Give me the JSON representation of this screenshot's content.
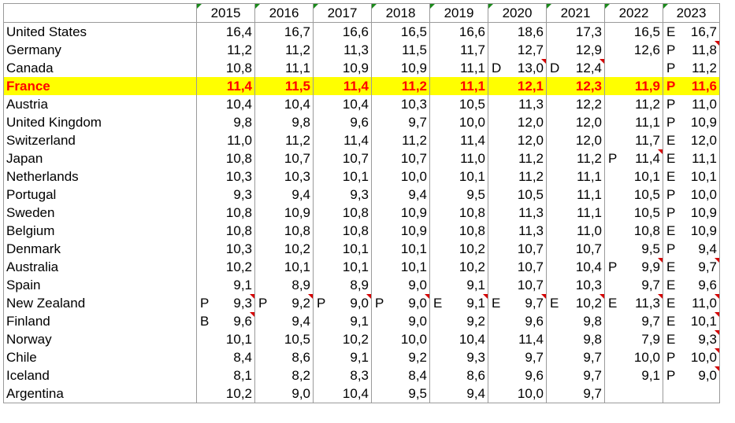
{
  "years": [
    "2015",
    "2016",
    "2017",
    "2018",
    "2019",
    "2020",
    "2021",
    "2022",
    "2023"
  ],
  "rows": [
    {
      "name": "United States",
      "cells": [
        {
          "v": "16,4"
        },
        {
          "v": "16,7"
        },
        {
          "v": "16,6"
        },
        {
          "v": "16,5"
        },
        {
          "v": "16,6"
        },
        {
          "v": "18,6"
        },
        {
          "v": "17,3"
        },
        {
          "v": "16,5"
        },
        {
          "f": "E",
          "v": "16,7"
        }
      ]
    },
    {
      "name": "Germany",
      "cells": [
        {
          "v": "11,2"
        },
        {
          "v": "11,2"
        },
        {
          "v": "11,3"
        },
        {
          "v": "11,5"
        },
        {
          "v": "11,7"
        },
        {
          "v": "12,7"
        },
        {
          "v": "12,9"
        },
        {
          "v": "12,6"
        },
        {
          "f": "P",
          "v": "11,8",
          "n": true
        }
      ]
    },
    {
      "name": "Canada",
      "cells": [
        {
          "v": "10,8"
        },
        {
          "v": "11,1"
        },
        {
          "v": "10,9"
        },
        {
          "v": "10,9"
        },
        {
          "v": "11,1"
        },
        {
          "f": "D",
          "v": "13,0",
          "n": true
        },
        {
          "f": "D",
          "v": "12,4",
          "n": true
        },
        {
          "v": ""
        },
        {
          "f": "P",
          "v": "11,2"
        }
      ]
    },
    {
      "name": "France",
      "hl": true,
      "cells": [
        {
          "v": "11,4"
        },
        {
          "v": "11,5"
        },
        {
          "v": "11,4"
        },
        {
          "v": "11,2"
        },
        {
          "v": "11,1"
        },
        {
          "v": "12,1"
        },
        {
          "v": "12,3"
        },
        {
          "v": "11,9"
        },
        {
          "f": "P",
          "v": "11,6"
        }
      ]
    },
    {
      "name": "Austria",
      "cells": [
        {
          "v": "10,4"
        },
        {
          "v": "10,4"
        },
        {
          "v": "10,4"
        },
        {
          "v": "10,3"
        },
        {
          "v": "10,5"
        },
        {
          "v": "11,3"
        },
        {
          "v": "12,2"
        },
        {
          "v": "11,2"
        },
        {
          "f": "P",
          "v": "11,0"
        }
      ]
    },
    {
      "name": "United Kingdom",
      "cells": [
        {
          "v": "9,8"
        },
        {
          "v": "9,8"
        },
        {
          "v": "9,6"
        },
        {
          "v": "9,7"
        },
        {
          "v": "10,0"
        },
        {
          "v": "12,0"
        },
        {
          "v": "12,0"
        },
        {
          "v": "11,1"
        },
        {
          "f": "P",
          "v": "10,9"
        }
      ]
    },
    {
      "name": "Switzerland",
      "cells": [
        {
          "v": "11,0"
        },
        {
          "v": "11,2"
        },
        {
          "v": "11,4"
        },
        {
          "v": "11,2"
        },
        {
          "v": "11,4"
        },
        {
          "v": "12,0"
        },
        {
          "v": "12,0"
        },
        {
          "v": "11,7"
        },
        {
          "f": "E",
          "v": "12,0"
        }
      ]
    },
    {
      "name": "Japan",
      "cells": [
        {
          "v": "10,8"
        },
        {
          "v": "10,7"
        },
        {
          "v": "10,7"
        },
        {
          "v": "10,7"
        },
        {
          "v": "11,0"
        },
        {
          "v": "11,2"
        },
        {
          "v": "11,2"
        },
        {
          "f": "P",
          "v": "11,4",
          "n": true
        },
        {
          "f": "E",
          "v": "11,1"
        }
      ]
    },
    {
      "name": "Netherlands",
      "cells": [
        {
          "v": "10,3"
        },
        {
          "v": "10,3"
        },
        {
          "v": "10,1"
        },
        {
          "v": "10,0"
        },
        {
          "v": "10,1"
        },
        {
          "v": "11,2"
        },
        {
          "v": "11,1"
        },
        {
          "v": "10,1"
        },
        {
          "f": "E",
          "v": "10,1"
        }
      ]
    },
    {
      "name": "Portugal",
      "cells": [
        {
          "v": "9,3"
        },
        {
          "v": "9,4"
        },
        {
          "v": "9,3"
        },
        {
          "v": "9,4"
        },
        {
          "v": "9,5"
        },
        {
          "v": "10,5"
        },
        {
          "v": "11,1"
        },
        {
          "v": "10,5"
        },
        {
          "f": "P",
          "v": "10,0"
        }
      ]
    },
    {
      "name": "Sweden",
      "cells": [
        {
          "v": "10,8"
        },
        {
          "v": "10,9"
        },
        {
          "v": "10,8"
        },
        {
          "v": "10,9"
        },
        {
          "v": "10,8"
        },
        {
          "v": "11,3"
        },
        {
          "v": "11,1"
        },
        {
          "v": "10,5"
        },
        {
          "f": "P",
          "v": "10,9"
        }
      ]
    },
    {
      "name": "Belgium",
      "cells": [
        {
          "v": "10,8"
        },
        {
          "v": "10,8"
        },
        {
          "v": "10,8"
        },
        {
          "v": "10,9"
        },
        {
          "v": "10,8"
        },
        {
          "v": "11,3"
        },
        {
          "v": "11,0"
        },
        {
          "v": "10,8"
        },
        {
          "f": "E",
          "v": "10,9"
        }
      ]
    },
    {
      "name": "Denmark",
      "cells": [
        {
          "v": "10,3"
        },
        {
          "v": "10,2"
        },
        {
          "v": "10,1"
        },
        {
          "v": "10,1"
        },
        {
          "v": "10,2"
        },
        {
          "v": "10,7"
        },
        {
          "v": "10,7"
        },
        {
          "v": "9,5"
        },
        {
          "f": "P",
          "v": "9,4"
        }
      ]
    },
    {
      "name": "Australia",
      "cells": [
        {
          "v": "10,2"
        },
        {
          "v": "10,1"
        },
        {
          "v": "10,1"
        },
        {
          "v": "10,1"
        },
        {
          "v": "10,2"
        },
        {
          "v": "10,7"
        },
        {
          "v": "10,4"
        },
        {
          "f": "P",
          "v": "9,9",
          "n": true
        },
        {
          "f": "E",
          "v": "9,7",
          "n": true
        }
      ]
    },
    {
      "name": "Spain",
      "cells": [
        {
          "v": "9,1"
        },
        {
          "v": "8,9"
        },
        {
          "v": "8,9"
        },
        {
          "v": "9,0"
        },
        {
          "v": "9,1"
        },
        {
          "v": "10,7"
        },
        {
          "v": "10,3"
        },
        {
          "v": "9,7"
        },
        {
          "f": "E",
          "v": "9,6"
        }
      ]
    },
    {
      "name": "New Zealand",
      "cells": [
        {
          "f": "P",
          "v": "9,3",
          "n": true
        },
        {
          "f": "P",
          "v": "9,2",
          "n": true
        },
        {
          "f": "P",
          "v": "9,0",
          "n": true
        },
        {
          "f": "P",
          "v": "9,0",
          "n": true
        },
        {
          "f": "E",
          "v": "9,1",
          "n": true
        },
        {
          "f": "E",
          "v": "9,7",
          "n": true
        },
        {
          "f": "E",
          "v": "10,2",
          "n": true
        },
        {
          "f": "E",
          "v": "11,3",
          "n": true
        },
        {
          "f": "E",
          "v": "11,0",
          "n": true
        }
      ]
    },
    {
      "name": "Finland",
      "cells": [
        {
          "f": "B",
          "v": "9,6",
          "n": true
        },
        {
          "v": "9,4"
        },
        {
          "v": "9,1"
        },
        {
          "v": "9,0"
        },
        {
          "v": "9,2"
        },
        {
          "v": "9,6"
        },
        {
          "v": "9,8"
        },
        {
          "v": "9,7"
        },
        {
          "f": "E",
          "v": "10,1",
          "n": true
        }
      ]
    },
    {
      "name": "Norway",
      "cells": [
        {
          "v": "10,1"
        },
        {
          "v": "10,5"
        },
        {
          "v": "10,2"
        },
        {
          "v": "10,0"
        },
        {
          "v": "10,4"
        },
        {
          "v": "11,4"
        },
        {
          "v": "9,8"
        },
        {
          "v": "7,9"
        },
        {
          "f": "E",
          "v": "9,3",
          "n": true
        }
      ]
    },
    {
      "name": "Chile",
      "cells": [
        {
          "v": "8,4"
        },
        {
          "v": "8,6"
        },
        {
          "v": "9,1"
        },
        {
          "v": "9,2"
        },
        {
          "v": "9,3"
        },
        {
          "v": "9,7"
        },
        {
          "v": "9,7"
        },
        {
          "v": "10,0"
        },
        {
          "f": "P",
          "v": "10,0",
          "n": true
        }
      ]
    },
    {
      "name": "Iceland",
      "cells": [
        {
          "v": "8,1"
        },
        {
          "v": "8,2"
        },
        {
          "v": "8,3"
        },
        {
          "v": "8,4"
        },
        {
          "v": "8,6"
        },
        {
          "v": "9,6"
        },
        {
          "v": "9,7"
        },
        {
          "v": "9,1"
        },
        {
          "f": "P",
          "v": "9,0",
          "n": true
        }
      ]
    },
    {
      "name": "Argentina",
      "cells": [
        {
          "v": "10,2"
        },
        {
          "v": "9,0"
        },
        {
          "v": "10,4"
        },
        {
          "v": "9,5"
        },
        {
          "v": "9,4"
        },
        {
          "v": "10,0"
        },
        {
          "v": "9,7"
        },
        {
          "v": ""
        },
        {
          "v": ""
        }
      ]
    }
  ],
  "colors": {
    "highlight_bg": "#ffff00",
    "highlight_text": "#ff0000",
    "comment_marker": "#d40000",
    "header_marker": "#1a8a1a"
  }
}
